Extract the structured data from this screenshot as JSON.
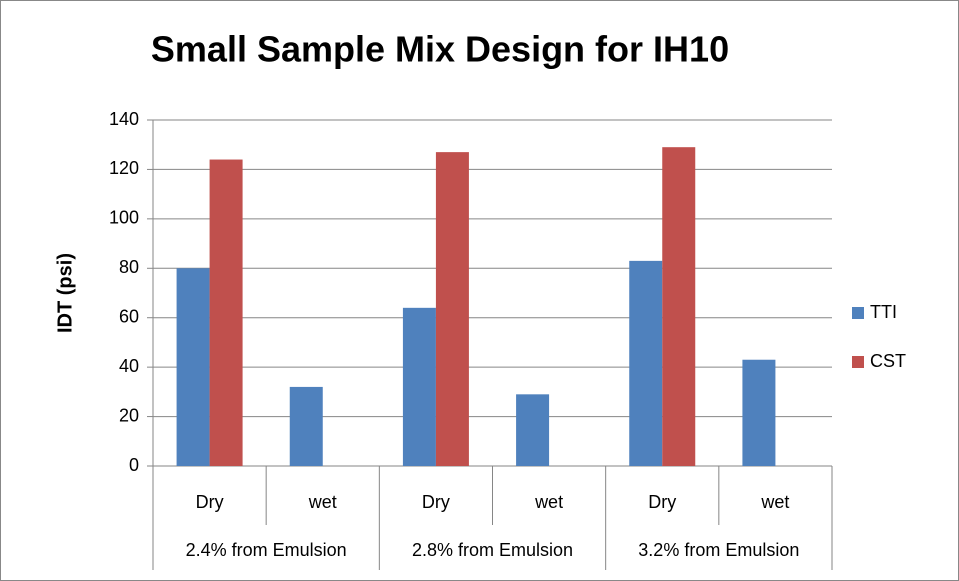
{
  "chart_data": {
    "type": "bar",
    "title": "Small Sample Mix Design for IH10",
    "y_label": "IDT (psi)",
    "categories": [
      "Dry",
      "wet",
      "Dry",
      "wet",
      "Dry",
      "wet"
    ],
    "groups": [
      "2.4% from Emulsion",
      "2.8% from Emulsion",
      "3.2% from Emulsion"
    ],
    "series": [
      {
        "name": "TTI",
        "color": "#4f81bd",
        "values": [
          80,
          32,
          64,
          29,
          83,
          43
        ]
      },
      {
        "name": "CST",
        "color": "#c0504d",
        "values": [
          124,
          null,
          127,
          null,
          129,
          null
        ]
      }
    ],
    "ylim": [
      0,
      140
    ],
    "yticks": [
      0,
      20,
      40,
      60,
      80,
      100,
      120,
      140
    ],
    "grid": true,
    "legend": "right"
  }
}
